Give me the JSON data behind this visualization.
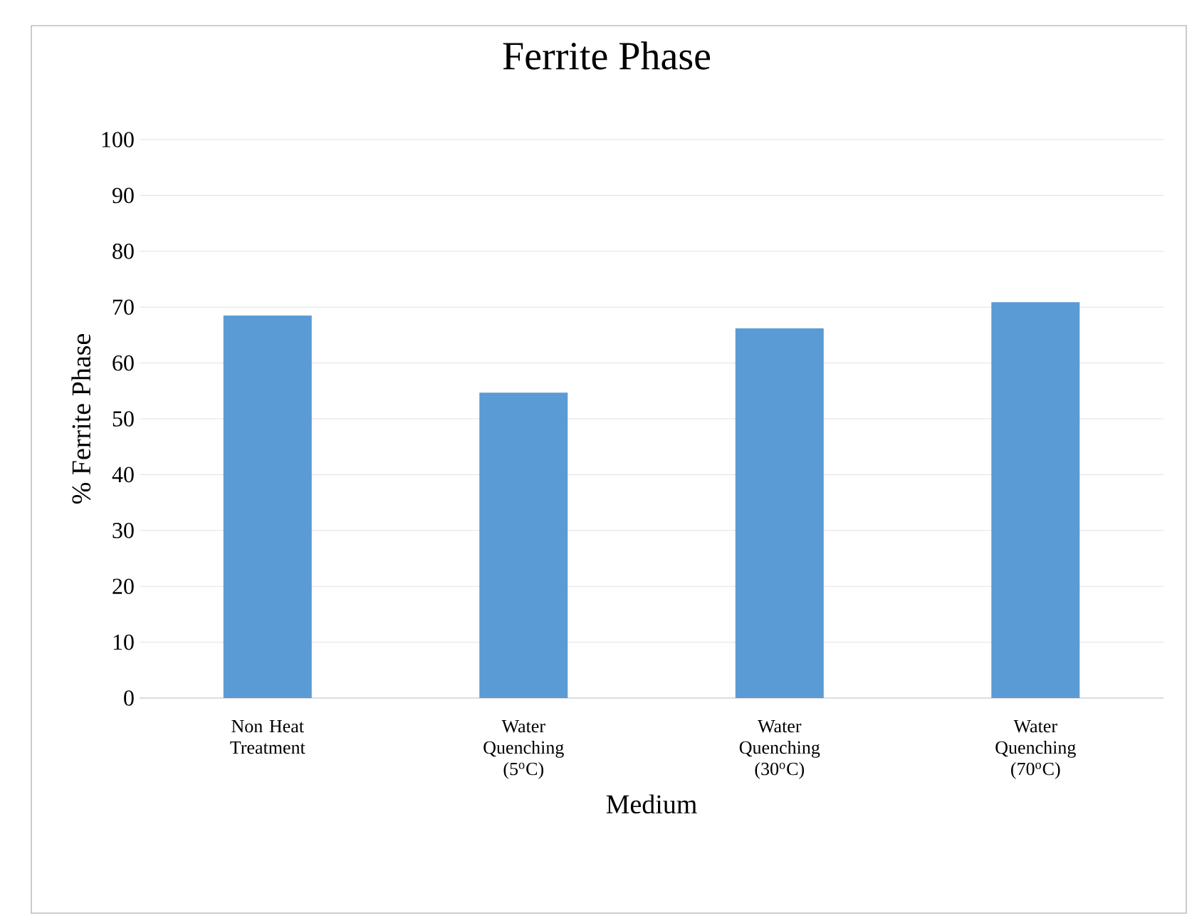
{
  "chart_data": {
    "type": "bar",
    "title": "Ferrite Phase",
    "xlabel": "Medium",
    "ylabel": "% Ferrite Phase",
    "categories": [
      "Non Heat Treatment",
      "Water Quenching (5$^{o}$C)",
      "Water Quenching (30$^{o}$C)",
      "Water Quenching (70$^{o}$C)"
    ],
    "values": [
      68.5,
      54.7,
      66.2,
      70.9
    ],
    "color": "#5b9bd5",
    "ylim": [
      0,
      100
    ],
    "yticks": [
      0,
      10,
      20,
      30,
      40,
      50,
      60,
      70,
      80,
      90,
      100
    ],
    "grid": "y"
  }
}
